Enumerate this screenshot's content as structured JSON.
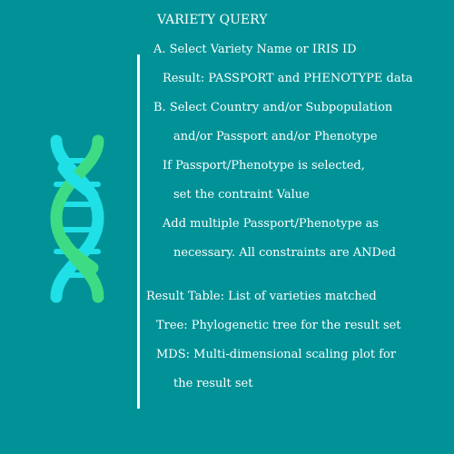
{
  "card": {
    "title": "VARIETY QUERY",
    "lines": [
      "A. Select Variety Name or IRIS ID",
      "Result: PASSPORT and PHENOTYPE data",
      "B. Select Country and/or Subpopulation",
      "and/or Passport and/or Phenotype",
      "If Passport/Phenotype is selected,",
      "set the contraint Value",
      "Add multiple Passport/Phenotype as",
      "necessary. All constraints are ANDed",
      "Result Table: List of varieties matched",
      "Tree: Phylogenetic tree for the result set",
      "MDS: Multi-dimensional scaling plot for",
      "the result set"
    ]
  },
  "colors": {
    "background": "#009297",
    "text": "#ffffff",
    "dna_green": "#3ddc84",
    "dna_cyan": "#1fe0e6"
  },
  "icon": "dna-helix-icon"
}
